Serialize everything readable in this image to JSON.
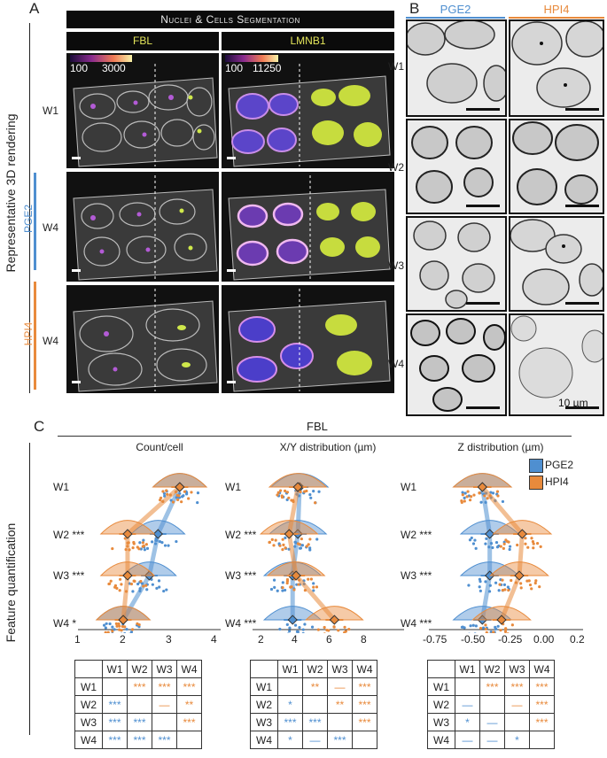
{
  "panelA": {
    "letter": "A",
    "title": "Nuclei & Cells Segmentation",
    "markers": [
      "FBL",
      "LMNB1"
    ],
    "scale_fbl": {
      "min": "100",
      "max": "3000"
    },
    "scale_lmnb1": {
      "min": "100",
      "max": "11250"
    },
    "rows": [
      "W1",
      "W4",
      "W4"
    ],
    "side_label": "Representative 3D rendering",
    "groups": [
      "PGE2",
      "HPI4"
    ]
  },
  "panelB": {
    "letter": "B",
    "cols": [
      "PGE2",
      "HPI4"
    ],
    "rows": [
      "W1",
      "W2",
      "W3",
      "W4"
    ],
    "scalebar": "10 µm"
  },
  "panelC": {
    "letter": "C",
    "header": "FBL",
    "side_label": "Feature quantification",
    "legend": [
      "PGE2",
      "HPI4"
    ],
    "colors": {
      "PGE2": "#4f8fd0",
      "HPI4": "#e88a3c"
    },
    "plots": [
      {
        "title": "Count/cell",
        "ticks": [
          "1",
          "2",
          "3",
          "4"
        ],
        "rowlabels": [
          "W1",
          "W2 ***",
          "W3 ***",
          "W4 *"
        ]
      },
      {
        "title": "X/Y distribution (µm)",
        "ticks": [
          "2",
          "4",
          "6",
          "8"
        ],
        "rowlabels": [
          "W1",
          "W2 ***",
          "W3 ***",
          "W4 ***"
        ]
      },
      {
        "title": "Z distribution (µm)",
        "ticks": [
          "-0.75",
          "-0.50",
          "-0.25",
          "0.00",
          "0.2"
        ],
        "rowlabels": [
          "W1",
          "W2 ***",
          "W3 ***",
          "W4 ***"
        ]
      }
    ],
    "tables": [
      {
        "header": [
          "",
          "W1",
          "W2",
          "W3",
          "W4"
        ],
        "rows": [
          [
            {
              "t": "W1",
              "c": ""
            },
            {
              "t": "",
              "c": ""
            },
            {
              "t": "***",
              "c": "o"
            },
            {
              "t": "***",
              "c": "o"
            },
            {
              "t": "***",
              "c": "o"
            }
          ],
          [
            {
              "t": "W2",
              "c": ""
            },
            {
              "t": "***",
              "c": "b"
            },
            {
              "t": "",
              "c": ""
            },
            {
              "t": "—",
              "c": "o"
            },
            {
              "t": "**",
              "c": "o"
            }
          ],
          [
            {
              "t": "W3",
              "c": ""
            },
            {
              "t": "***",
              "c": "b"
            },
            {
              "t": "***",
              "c": "b"
            },
            {
              "t": "",
              "c": ""
            },
            {
              "t": "***",
              "c": "o"
            }
          ],
          [
            {
              "t": "W4",
              "c": ""
            },
            {
              "t": "***",
              "c": "b"
            },
            {
              "t": "***",
              "c": "b"
            },
            {
              "t": "***",
              "c": "b"
            },
            {
              "t": "",
              "c": ""
            }
          ]
        ]
      },
      {
        "header": [
          "",
          "W1",
          "W2",
          "W3",
          "W4"
        ],
        "rows": [
          [
            {
              "t": "W1",
              "c": ""
            },
            {
              "t": "",
              "c": ""
            },
            {
              "t": "**",
              "c": "o"
            },
            {
              "t": "—",
              "c": "o"
            },
            {
              "t": "***",
              "c": "o"
            }
          ],
          [
            {
              "t": "W2",
              "c": ""
            },
            {
              "t": "*",
              "c": "b"
            },
            {
              "t": "",
              "c": ""
            },
            {
              "t": "**",
              "c": "o"
            },
            {
              "t": "***",
              "c": "o"
            }
          ],
          [
            {
              "t": "W3",
              "c": ""
            },
            {
              "t": "***",
              "c": "b"
            },
            {
              "t": "***",
              "c": "b"
            },
            {
              "t": "",
              "c": ""
            },
            {
              "t": "***",
              "c": "o"
            }
          ],
          [
            {
              "t": "W4",
              "c": ""
            },
            {
              "t": "*",
              "c": "b"
            },
            {
              "t": "—",
              "c": "b"
            },
            {
              "t": "***",
              "c": "b"
            },
            {
              "t": "",
              "c": ""
            }
          ]
        ]
      },
      {
        "header": [
          "",
          "W1",
          "W2",
          "W3",
          "W4"
        ],
        "rows": [
          [
            {
              "t": "W1",
              "c": ""
            },
            {
              "t": "",
              "c": ""
            },
            {
              "t": "***",
              "c": "o"
            },
            {
              "t": "***",
              "c": "o"
            },
            {
              "t": "***",
              "c": "o"
            }
          ],
          [
            {
              "t": "W2",
              "c": ""
            },
            {
              "t": "—",
              "c": "b"
            },
            {
              "t": "",
              "c": ""
            },
            {
              "t": "—",
              "c": "o"
            },
            {
              "t": "***",
              "c": "o"
            }
          ],
          [
            {
              "t": "W3",
              "c": ""
            },
            {
              "t": "*",
              "c": "b"
            },
            {
              "t": "—",
              "c": "b"
            },
            {
              "t": "",
              "c": ""
            },
            {
              "t": "***",
              "c": "o"
            }
          ],
          [
            {
              "t": "W4",
              "c": ""
            },
            {
              "t": "—",
              "c": "b"
            },
            {
              "t": "—",
              "c": "b"
            },
            {
              "t": "*",
              "c": "b"
            },
            {
              "t": "",
              "c": ""
            }
          ]
        ]
      }
    ]
  },
  "chart_data": [
    {
      "type": "scatter",
      "title": "Count/cell",
      "xlim": [
        1,
        4.2
      ],
      "categories": [
        "W1",
        "W2",
        "W3",
        "W4"
      ],
      "series": [
        {
          "name": "PGE2",
          "values": [
            3.3,
            2.8,
            2.6,
            2.0
          ]
        },
        {
          "name": "HPI4",
          "values": [
            3.3,
            2.1,
            2.1,
            2.0
          ]
        }
      ]
    },
    {
      "type": "scatter",
      "title": "X/Y distribution (µm)",
      "xlim": [
        1,
        9.5
      ],
      "categories": [
        "W1",
        "W2",
        "W3",
        "W4"
      ],
      "series": [
        {
          "name": "PGE2",
          "values": [
            3.6,
            3.5,
            3.2,
            3.2
          ]
        },
        {
          "name": "HPI4",
          "values": [
            3.5,
            3.0,
            3.4,
            5.6
          ]
        }
      ]
    },
    {
      "type": "scatter",
      "title": "Z distribution (µm)",
      "xlim": [
        -0.8,
        0.22
      ],
      "categories": [
        "W1",
        "W2",
        "W3",
        "W4"
      ],
      "series": [
        {
          "name": "PGE2",
          "values": [
            -0.45,
            -0.4,
            -0.4,
            -0.45
          ]
        },
        {
          "name": "HPI4",
          "values": [
            -0.45,
            -0.18,
            -0.2,
            -0.32
          ]
        }
      ]
    }
  ]
}
